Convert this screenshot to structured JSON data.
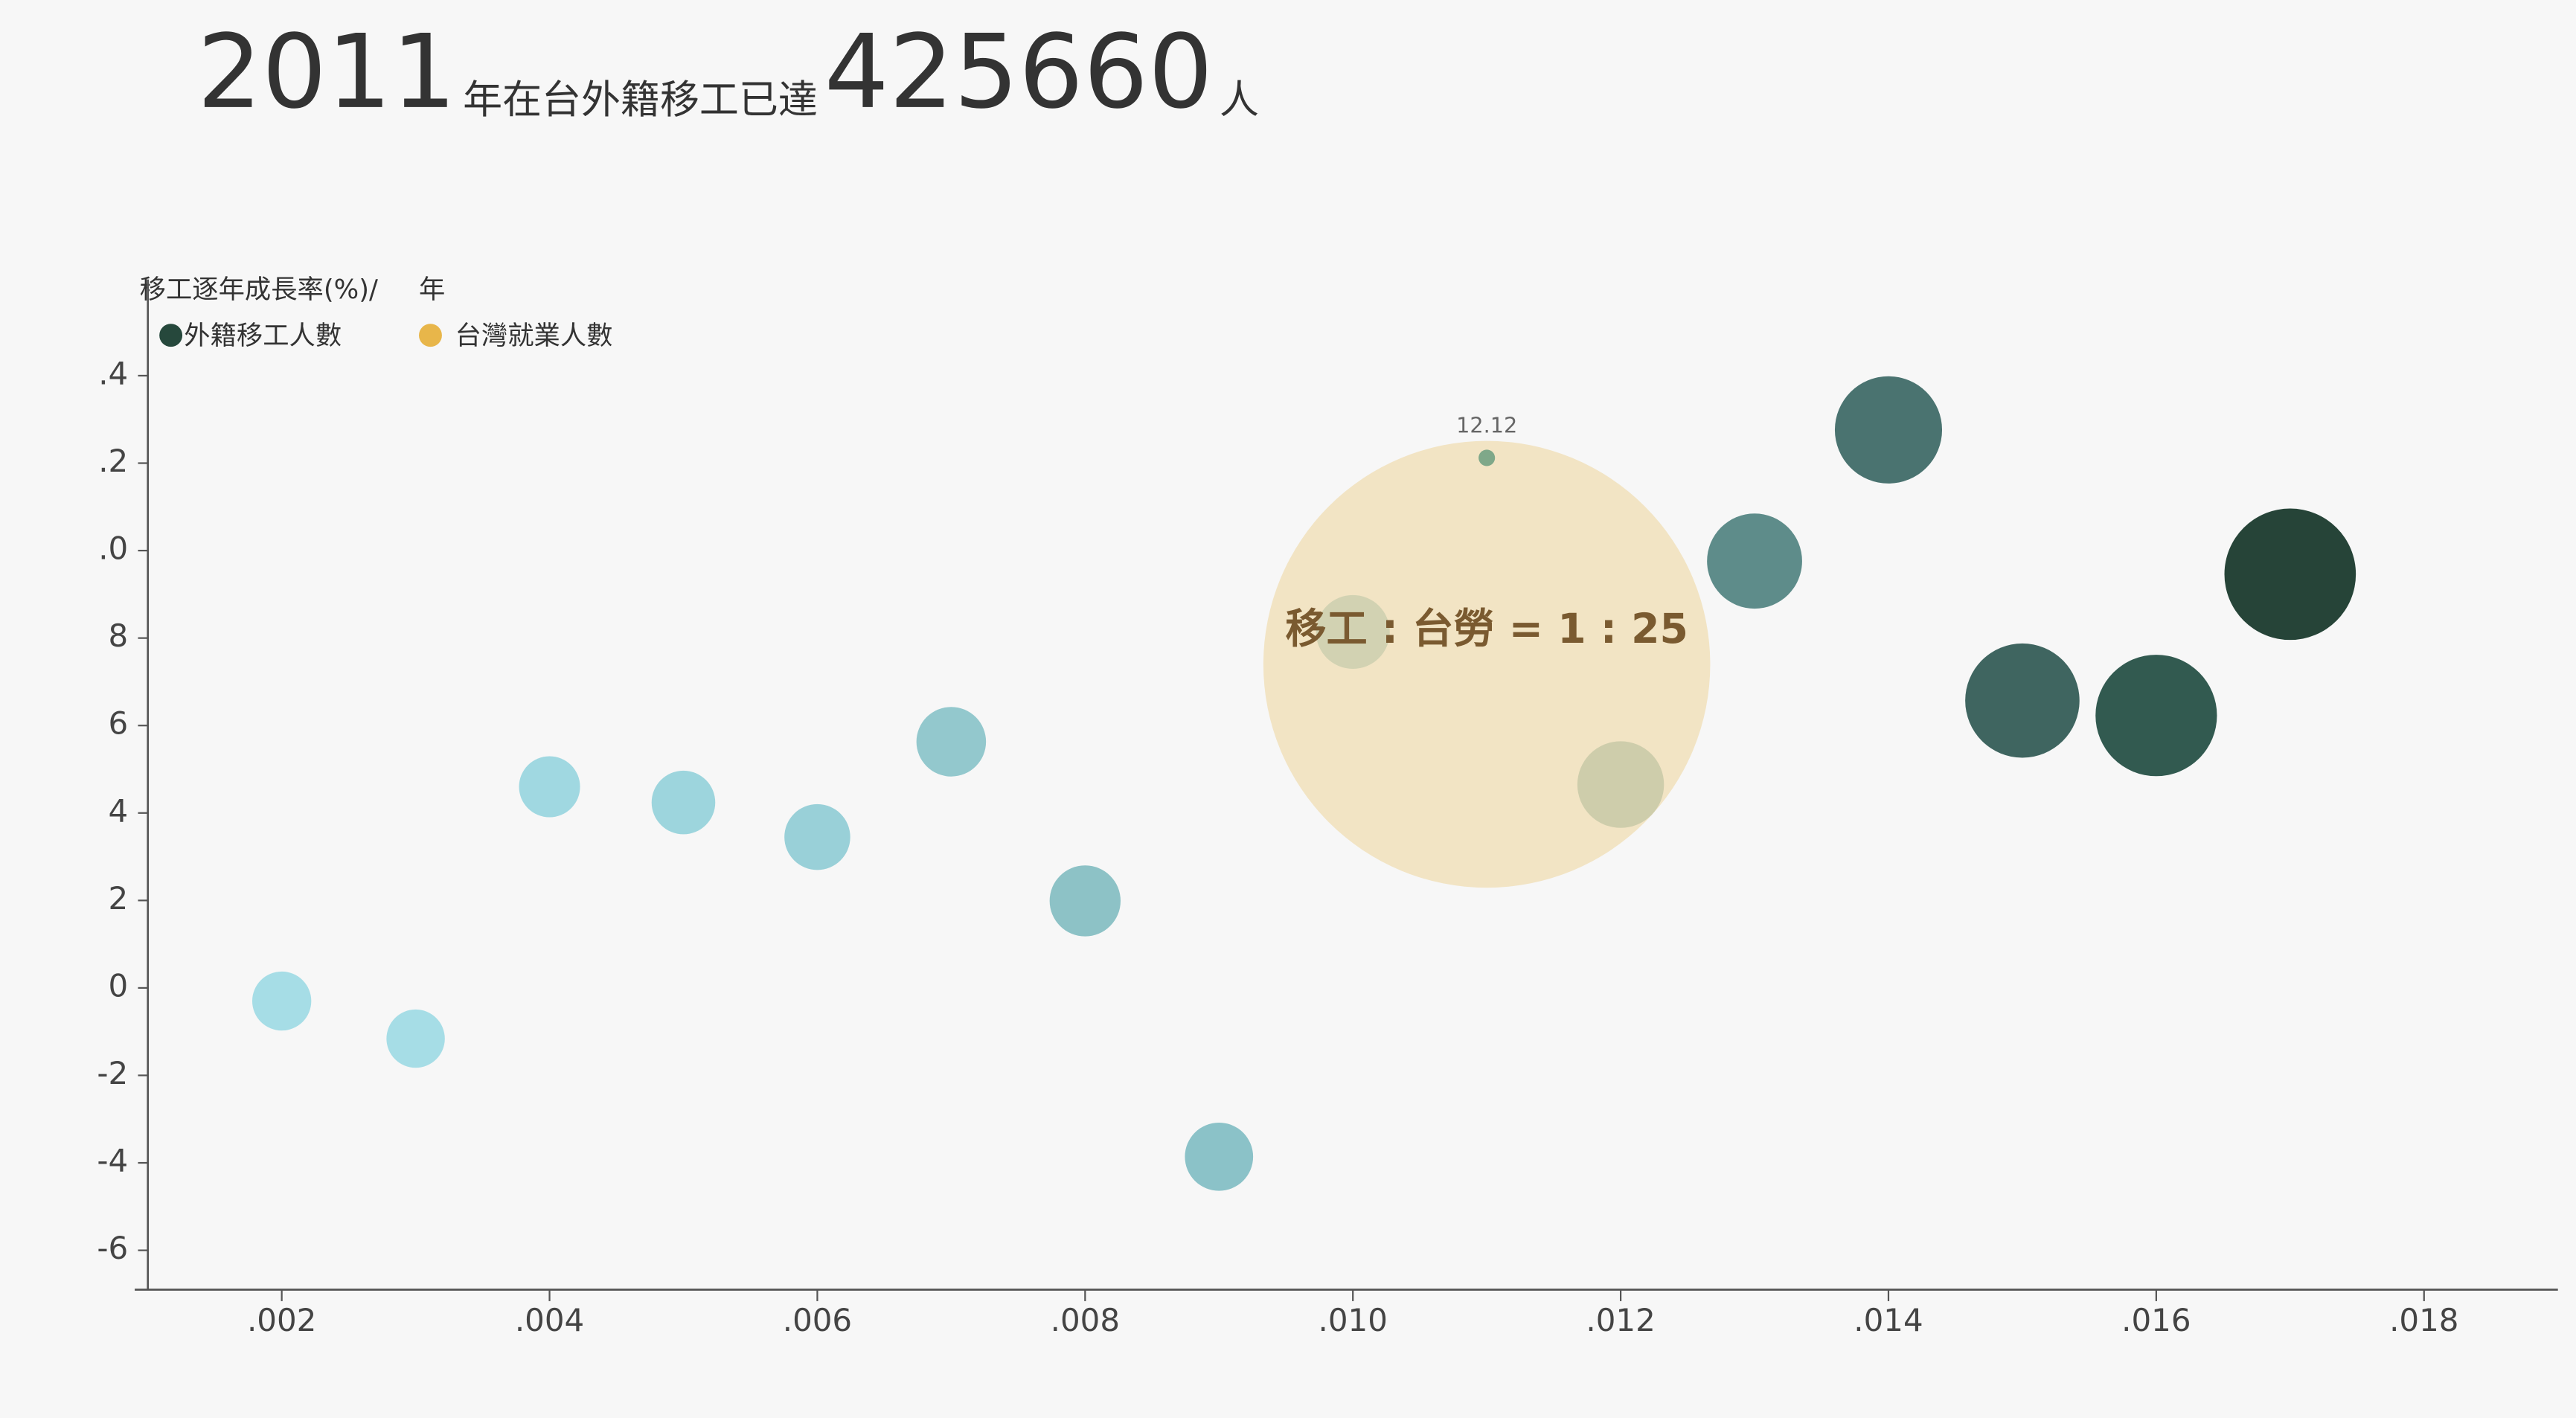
{
  "chart_data": {
    "type": "scatter",
    "title": {
      "year": 2011,
      "text1": "年在台外籍移工已達",
      "count": 425660,
      "text2": "人"
    },
    "y_label": "移工逐年成長率(%)/",
    "x_label": "年",
    "annotation": "移工 : 台勞 = 1 : 25",
    "xlim": [
      2001,
      2019
    ],
    "ylim": [
      -6.9,
      16.2
    ],
    "xticks": [
      {
        "value": 2002,
        "label": ".002"
      },
      {
        "value": 2004,
        "label": ".004"
      },
      {
        "value": 2006,
        "label": ".006"
      },
      {
        "value": 2008,
        "label": ".008"
      },
      {
        "value": 2010,
        "label": ".010"
      },
      {
        "value": 2012,
        "label": ".012"
      },
      {
        "value": 2014,
        "label": ".014"
      },
      {
        "value": 2016,
        "label": ".016"
      },
      {
        "value": 2018,
        "label": ".018"
      }
    ],
    "yticks": [
      {
        "value": 14,
        "label": ".4"
      },
      {
        "value": 12,
        "label": ".2"
      },
      {
        "value": 10,
        "label": ".0"
      },
      8,
      6,
      4,
      2,
      0,
      -2,
      -4,
      -6
    ],
    "series": [
      {
        "name": "外籍移工人數",
        "color": "#26483c",
        "x": [
          2002,
          2003,
          2004,
          2005,
          2006,
          2007,
          2008,
          2009,
          2010,
          2011,
          2012,
          2013,
          2014,
          2015,
          2016,
          2017
        ],
        "y": [
          -0.3,
          -1.16,
          4.6,
          4.24,
          3.45,
          5.63,
          1.99,
          -3.86,
          8.14,
          12.12,
          4.65,
          9.76,
          12.76,
          6.57,
          6.23,
          9.46
        ],
        "sizes": [
          303684,
          300150,
          314034,
          327396,
          338755,
          357937,
          365060,
          351016,
          379653,
          425660,
          445579,
          489134,
          551596,
          587940,
          624768,
          676142
        ],
        "colors": [
          "#a6dde6",
          "#a6dde6",
          "#a0d8e1",
          "#9dd5dd",
          "#99d0d8",
          "#93c8cd",
          "#8dc2c6",
          "#8bc2c8",
          "#84b8b6",
          "#7fa889",
          "#77a49d",
          "#5e8c8a",
          "#4a7370",
          "#3f6560",
          "#325a50",
          "#264438"
        ]
      },
      {
        "name": "台灣就業人數",
        "color": "#e8b64a",
        "x": [
          2011
        ],
        "y": [
          7.4
        ],
        "sizes": [
          10709000
        ]
      }
    ]
  }
}
